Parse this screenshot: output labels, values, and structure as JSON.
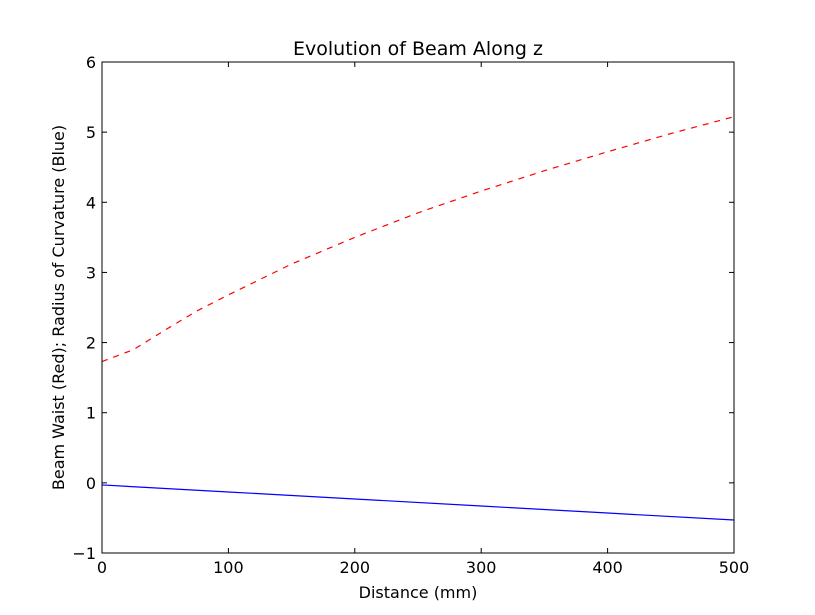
{
  "chart_data": {
    "type": "line",
    "title": "Evolution of Beam Along z",
    "xlabel": "Distance (mm)",
    "ylabel": "Beam Waist (Red); Radius of Curvature (Blue)",
    "xlim": [
      0,
      500
    ],
    "ylim": [
      -1,
      6
    ],
    "xticks": [
      0,
      100,
      200,
      300,
      400,
      500
    ],
    "xtick_labels": [
      "0",
      "100",
      "200",
      "300",
      "400",
      "500"
    ],
    "yticks": [
      -1,
      0,
      1,
      2,
      3,
      4,
      5,
      6
    ],
    "ytick_labels": [
      "−1",
      "0",
      "1",
      "2",
      "3",
      "4",
      "5",
      "6"
    ],
    "grid": false,
    "legend": "none",
    "series": [
      {
        "color": "#ff0000",
        "linestyle": "dashed",
        "x": [
          0,
          25,
          50,
          75,
          100,
          150,
          200,
          250,
          300,
          350,
          400,
          450,
          500
        ],
        "y": [
          1.73,
          1.9,
          2.18,
          2.45,
          2.68,
          3.12,
          3.5,
          3.85,
          4.16,
          4.45,
          4.72,
          4.98,
          5.22
        ]
      },
      {
        "color": "#0000ff",
        "linestyle": "solid",
        "x": [
          0,
          100,
          200,
          300,
          400,
          500
        ],
        "y": [
          -0.03,
          -0.13,
          -0.23,
          -0.33,
          -0.43,
          -0.53
        ]
      }
    ]
  }
}
